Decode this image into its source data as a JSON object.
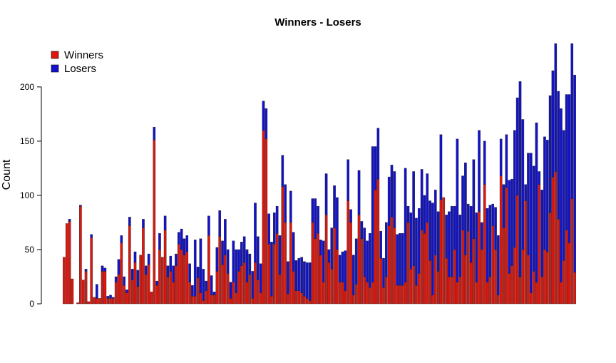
{
  "chart_data": {
    "type": "stacked_bar",
    "title": "Winners - Losers",
    "y_label": "Count",
    "categories": [
      null,
      null,
      null,
      null,
      null,
      null,
      null,
      null,
      null,
      null,
      null,
      null,
      null,
      null,
      null,
      null,
      null,
      null,
      null,
      null,
      null,
      null,
      null,
      null,
      null,
      null,
      null,
      null,
      null,
      null,
      null,
      null,
      null,
      null,
      null,
      null,
      null,
      null,
      null,
      null,
      null,
      null,
      null,
      null,
      null,
      null,
      null,
      null,
      null,
      null,
      null,
      null,
      null,
      null,
      null,
      null,
      null,
      null,
      null,
      null,
      null,
      null,
      null,
      null,
      null,
      null,
      null,
      null,
      null,
      null,
      null,
      null,
      null,
      null,
      null,
      null,
      null,
      null,
      null,
      null,
      null,
      null,
      null,
      null,
      null,
      null,
      null,
      null,
      null,
      null,
      null,
      null,
      null,
      null,
      null,
      null,
      null,
      null,
      null,
      null,
      null,
      null,
      null,
      null,
      null,
      null,
      null,
      null,
      null,
      null,
      null,
      null,
      null,
      null,
      null,
      null,
      null,
      null,
      null,
      null,
      null,
      null,
      null,
      null,
      null,
      null,
      null,
      null,
      null,
      null,
      null,
      null,
      null,
      null,
      null,
      null,
      null,
      null,
      null,
      null,
      null,
      null,
      null,
      null,
      null,
      null,
      null,
      null,
      null,
      null,
      null,
      null,
      null,
      null,
      null,
      null,
      null,
      null,
      null,
      null,
      null,
      null,
      null,
      null,
      null,
      null,
      null,
      null,
      null,
      null,
      null,
      null,
      null,
      null,
      null,
      null,
      null,
      null,
      null,
      null,
      null,
      null,
      null,
      null,
      null,
      null,
      null,
      null
    ],
    "series": [
      {
        "name": "Winners",
        "color": "#e0150c",
        "values": [
          43,
          74,
          76,
          23,
          0,
          1,
          90,
          22,
          30,
          2,
          61,
          6,
          5,
          5,
          30,
          30,
          5,
          5,
          5,
          20,
          27,
          56,
          17,
          10,
          72,
          22,
          38,
          16,
          45,
          70,
          27,
          36,
          11,
          151,
          17,
          50,
          43,
          68,
          25,
          30,
          20,
          35,
          55,
          50,
          45,
          48,
          20,
          7,
          7,
          24,
          10,
          3,
          12,
          63,
          8,
          8,
          30,
          62,
          36,
          45,
          28,
          5,
          20,
          10,
          30,
          35,
          38,
          20,
          27,
          5,
          38,
          22,
          10,
          160,
          152,
          55,
          7,
          55,
          65,
          27,
          108,
          75,
          9,
          75,
          30,
          12,
          12,
          10,
          7,
          5,
          3,
          75,
          60,
          65,
          45,
          20,
          82,
          38,
          32,
          70,
          50,
          20,
          20,
          12,
          95,
          75,
          8,
          18,
          82,
          60,
          25,
          20,
          15,
          20,
          105,
          115,
          42,
          15,
          25,
          72,
          80,
          70,
          17,
          17,
          17,
          20,
          75,
          32,
          35,
          17,
          28,
          68,
          65,
          75,
          40,
          8,
          45,
          30,
          96,
          98,
          42,
          25,
          25,
          50,
          20,
          25,
          68,
          45,
          67,
          38,
          60,
          20,
          85,
          50,
          110,
          20,
          25,
          72,
          50,
          8,
          118,
          70,
          107,
          28,
          35,
          52,
          100,
          25,
          50,
          95,
          45,
          10,
          30,
          20,
          110,
          25,
          50,
          48,
          84,
          117,
          122,
          78,
          20,
          40,
          68,
          56,
          97,
          29
        ]
      },
      {
        "name": "Losers",
        "color": "#1212cc",
        "values": [
          0,
          0,
          2,
          0,
          0,
          0,
          1,
          0,
          2,
          0,
          3,
          0,
          13,
          0,
          5,
          3,
          2,
          3,
          1,
          5,
          14,
          7,
          8,
          3,
          8,
          10,
          10,
          15,
          0,
          8,
          8,
          10,
          0,
          12,
          4,
          15,
          0,
          13,
          10,
          14,
          15,
          11,
          11,
          19,
          15,
          15,
          17,
          10,
          52,
          10,
          50,
          29,
          9,
          18,
          18,
          3,
          22,
          24,
          22,
          33,
          22,
          15,
          38,
          40,
          20,
          22,
          24,
          30,
          19,
          25,
          55,
          40,
          27,
          27,
          28,
          28,
          50,
          29,
          25,
          36,
          29,
          35,
          30,
          29,
          36,
          28,
          30,
          33,
          32,
          33,
          35,
          22,
          37,
          25,
          14,
          38,
          38,
          12,
          38,
          39,
          48,
          25,
          28,
          37,
          38,
          12,
          37,
          42,
          41,
          16,
          45,
          38,
          50,
          125,
          40,
          47,
          25,
          27,
          50,
          45,
          48,
          52,
          47,
          48,
          48,
          105,
          15,
          52,
          87,
          62,
          60,
          56,
          35,
          45,
          55,
          85,
          60,
          55,
          60,
          0,
          40,
          60,
          65,
          40,
          132,
          57,
          50,
          85,
          25,
          52,
          73,
          64,
          75,
          25,
          40,
          68,
          66,
          20,
          39,
          55,
          34,
          40,
          49,
          86,
          80,
          108,
          90,
          180,
          120,
          15,
          94,
          129,
          97,
          147,
          12,
          80,
          104,
          103,
          108,
          98,
          118,
          118,
          160,
          120,
          125,
          137,
          143,
          182
        ]
      }
    ],
    "ylim": [
      0,
      242
    ],
    "yticks": [
      0,
      50,
      100,
      150,
      200
    ],
    "legend": "top-left"
  }
}
